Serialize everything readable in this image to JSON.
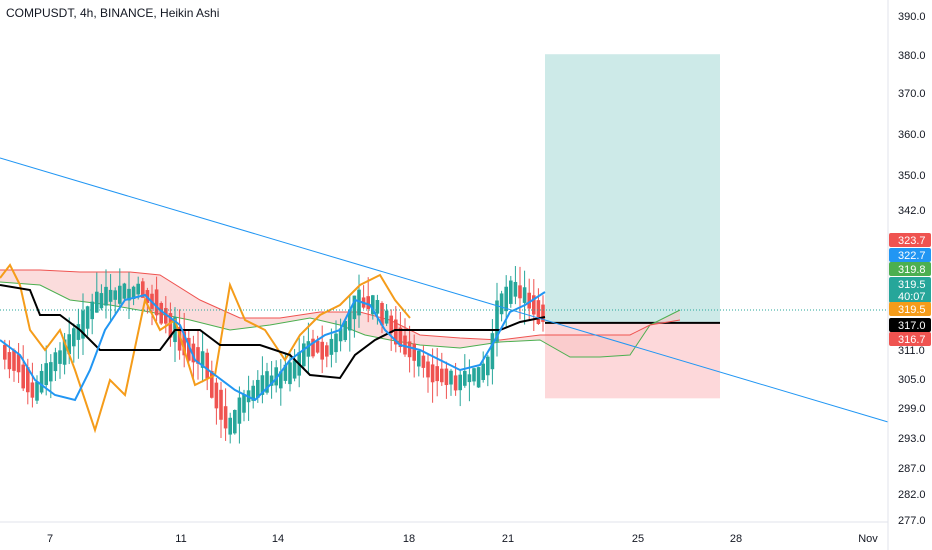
{
  "header": {
    "symbol_line": "COMPUSDT, 4h, BINANCE, Heikin Ashi"
  },
  "colors": {
    "up": "#26a69a",
    "down": "#ef5350",
    "conversion_line": "#2196f3",
    "base_line": "#000000",
    "lagging_span": "#f59c1a",
    "cloud_bull_edge": "#4caf50",
    "cloud_bear_edge": "#ef5350",
    "cloud_bull_fill": "#a5d6a7",
    "cloud_bear_fill": "#f8c4c4",
    "trendline": "#2196f3",
    "target_zone": "#b2dfdb",
    "stop_zone": "#fccbcd"
  },
  "chart_data": {
    "type": "candlestick",
    "title": "COMPUSDT, 4h, BINANCE, Heikin Ashi",
    "y_axis": {
      "ticks": [
        "390.0",
        "380.0",
        "370.0",
        "360.0",
        "350.0",
        "342.0",
        "311.0",
        "305.0",
        "299.0",
        "293.0",
        "287.0",
        "282.0",
        "277.0"
      ],
      "tick_values": [
        390,
        380,
        370,
        360,
        350,
        342,
        311,
        305,
        299,
        293,
        287,
        282,
        277
      ]
    },
    "x_axis": {
      "ticks": [
        "7",
        "11",
        "14",
        "18",
        "21",
        "25",
        "28",
        "Nov"
      ]
    },
    "price_labels": [
      {
        "text": "323.7",
        "value": 323.7,
        "color": "#ef5350"
      },
      {
        "text": "322.7",
        "value": 322.7,
        "color": "#2196f3"
      },
      {
        "text": "319.8",
        "value": 319.8,
        "color": "#4caf50"
      },
      {
        "text": "319.5",
        "value": 319.5,
        "color": "#26a69a",
        "countdown": "40:07"
      },
      {
        "text": "319.5",
        "value": 319.5,
        "color": "#f59c1a"
      },
      {
        "text": "317.0",
        "value": 317.0,
        "color": "#000000"
      },
      {
        "text": "316.7",
        "value": 316.7,
        "color": "#ef5350"
      }
    ],
    "long_position": {
      "entry": 317.0,
      "target": 380.2,
      "stop": 301.0
    }
  }
}
